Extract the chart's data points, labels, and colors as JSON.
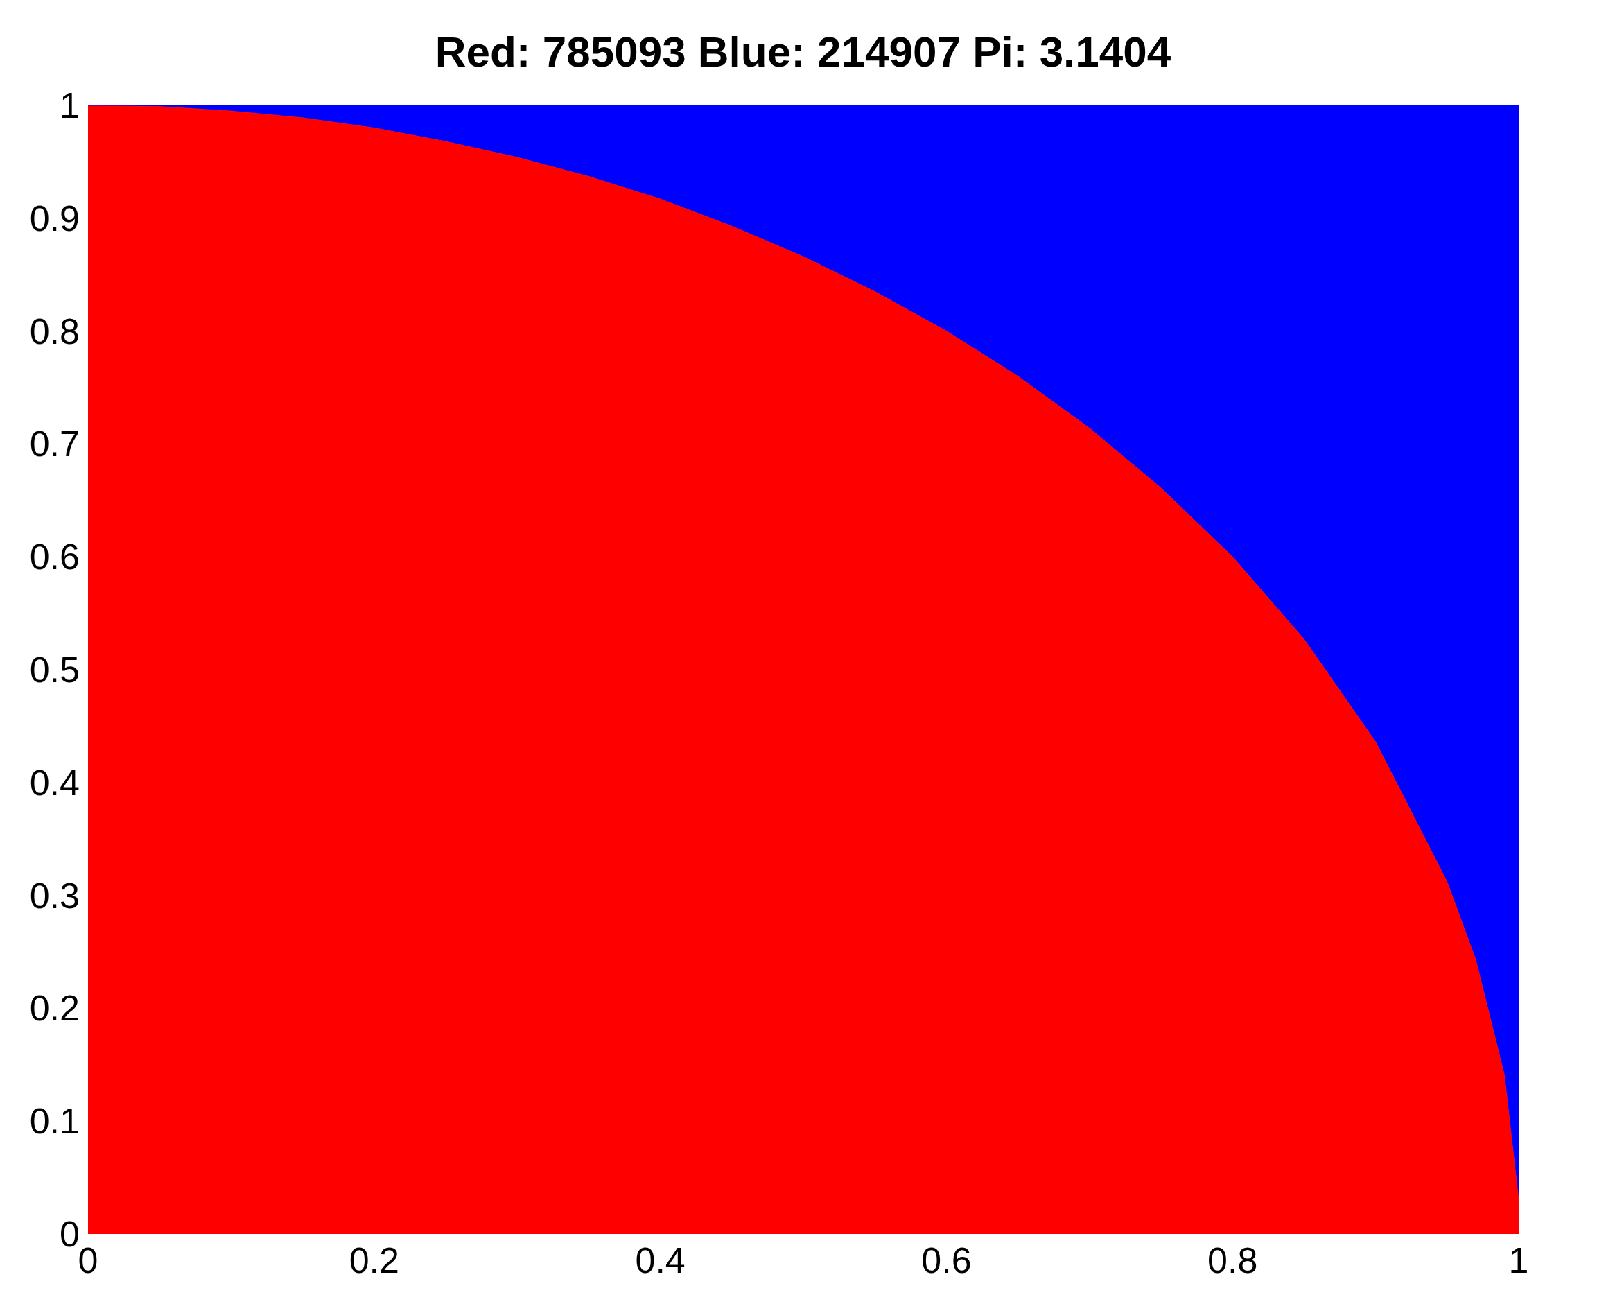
{
  "chart_data": {
    "type": "area",
    "title": "Red: 785093 Blue: 214907 Pi: 3.1404",
    "stacked": true,
    "x": [
      0,
      0.05,
      0.1,
      0.15,
      0.2,
      0.25,
      0.3,
      0.35,
      0.4,
      0.45,
      0.5,
      0.55,
      0.6,
      0.65,
      0.7,
      0.75,
      0.8,
      0.85,
      0.9,
      0.95,
      0.97,
      0.99,
      1
    ],
    "series": [
      {
        "color": "#ff0000",
        "values": [
          1,
          0.999,
          0.995,
          0.989,
          0.98,
          0.968,
          0.954,
          0.937,
          0.917,
          0.893,
          0.866,
          0.835,
          0.8,
          0.76,
          0.714,
          0.661,
          0.6,
          0.527,
          0.436,
          0.312,
          0.243,
          0.141,
          0.03
        ]
      },
      {
        "color": "#0000ff",
        "values": [
          0,
          0.001,
          0.005,
          0.011,
          0.02,
          0.032,
          0.046,
          0.063,
          0.083,
          0.107,
          0.134,
          0.165,
          0.2,
          0.24,
          0.286,
          0.339,
          0.4,
          0.473,
          0.564,
          0.688,
          0.757,
          0.859,
          0.97
        ]
      }
    ],
    "xlim": [
      0,
      1
    ],
    "xticks": [
      0,
      0.2,
      0.4,
      0.6,
      0.8,
      1
    ],
    "ylim": [
      0,
      1
    ],
    "yticks": [
      0,
      0.1,
      0.2,
      0.3,
      0.4,
      0.5,
      0.6,
      0.7,
      0.8,
      0.9,
      1
    ],
    "grid": false,
    "marker": "none"
  }
}
